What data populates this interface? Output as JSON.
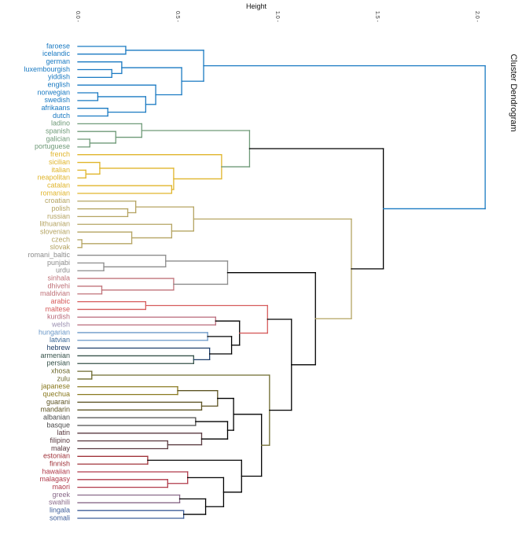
{
  "chart_data": {
    "type": "dendrogram",
    "title": "Cluster Dendrogram",
    "xlabel": "Height",
    "xlim": [
      0,
      2.05
    ],
    "x_ticks": [
      0.0,
      0.5,
      1.0,
      1.5,
      2.0
    ],
    "x_tick_labels": [
      "0.0",
      "0.5",
      "1.0",
      "1.5",
      "2.0"
    ],
    "grid": false,
    "leaves": [
      {
        "label": "faroese",
        "color": "#1a7ac2"
      },
      {
        "label": "icelandic",
        "color": "#1a7ac2"
      },
      {
        "label": "german",
        "color": "#1a7ac2"
      },
      {
        "label": "luxembourgish",
        "color": "#1a7ac2"
      },
      {
        "label": "yiddish",
        "color": "#1a7ac2"
      },
      {
        "label": "english",
        "color": "#1a7ac2"
      },
      {
        "label": "norwegian",
        "color": "#1a7ac2"
      },
      {
        "label": "swedish",
        "color": "#1a7ac2"
      },
      {
        "label": "afrikaans",
        "color": "#1a7ac2"
      },
      {
        "label": "dutch",
        "color": "#1a7ac2"
      },
      {
        "label": "ladino",
        "color": "#6f9a78"
      },
      {
        "label": "spanish",
        "color": "#6f9a78"
      },
      {
        "label": "galician",
        "color": "#6f9a78"
      },
      {
        "label": "portuguese",
        "color": "#6f9a78"
      },
      {
        "label": "french",
        "color": "#e0b52b"
      },
      {
        "label": "sicilian",
        "color": "#e0b52b"
      },
      {
        "label": "italian",
        "color": "#e0b52b"
      },
      {
        "label": "neapolitan",
        "color": "#e0b52b"
      },
      {
        "label": "catalan",
        "color": "#e0b52b"
      },
      {
        "label": "romanian",
        "color": "#e0b52b"
      },
      {
        "label": "croatian",
        "color": "#b5a462"
      },
      {
        "label": "polish",
        "color": "#b5a462"
      },
      {
        "label": "russian",
        "color": "#b5a462"
      },
      {
        "label": "lithuanian",
        "color": "#b5a462"
      },
      {
        "label": "slovenian",
        "color": "#b5a462"
      },
      {
        "label": "czech",
        "color": "#b5a462"
      },
      {
        "label": "slovak",
        "color": "#b5a462"
      },
      {
        "label": "romani_baltic",
        "color": "#8c8c8c"
      },
      {
        "label": "punjabi",
        "color": "#8c8c8c"
      },
      {
        "label": "urdu",
        "color": "#8c8c8c"
      },
      {
        "label": "sinhala",
        "color": "#c0737a"
      },
      {
        "label": "dhivehi",
        "color": "#c0737a"
      },
      {
        "label": "maldivian",
        "color": "#c0737a"
      },
      {
        "label": "arabic",
        "color": "#d65c5c"
      },
      {
        "label": "maltese",
        "color": "#d65c5c"
      },
      {
        "label": "kurdish",
        "color": "#b96a7a"
      },
      {
        "label": "welsh",
        "color": "#9a8fb0"
      },
      {
        "label": "hungarian",
        "color": "#6a98c8"
      },
      {
        "label": "latvian",
        "color": "#3d6a9a"
      },
      {
        "label": "hebrew",
        "color": "#1f3f6a"
      },
      {
        "label": "armenian",
        "color": "#36524a"
      },
      {
        "label": "persian",
        "color": "#36524a"
      },
      {
        "label": "xhosa",
        "color": "#6e6a2f"
      },
      {
        "label": "zulu",
        "color": "#6e6a2f"
      },
      {
        "label": "japanese",
        "color": "#8a7a20"
      },
      {
        "label": "quechua",
        "color": "#8a7a20"
      },
      {
        "label": "guarani",
        "color": "#5e5424"
      },
      {
        "label": "mandarin",
        "color": "#5e5424"
      },
      {
        "label": "albanian",
        "color": "#4a4a4a"
      },
      {
        "label": "basque",
        "color": "#4a4a4a"
      },
      {
        "label": "latin",
        "color": "#5a3a40"
      },
      {
        "label": "filipino",
        "color": "#5a3a40"
      },
      {
        "label": "malay",
        "color": "#5a3a40"
      },
      {
        "label": "estonian",
        "color": "#a0333a"
      },
      {
        "label": "finnish",
        "color": "#a0333a"
      },
      {
        "label": "hawaiian",
        "color": "#b03a4a"
      },
      {
        "label": "malagasy",
        "color": "#b03a4a"
      },
      {
        "label": "maori",
        "color": "#b03a4a"
      },
      {
        "label": "greek",
        "color": "#8a6a8a"
      },
      {
        "label": "swahili",
        "color": "#8a6a8a"
      },
      {
        "label": "lingala",
        "color": "#3f5f9a"
      },
      {
        "label": "somali",
        "color": "#3f5f9a"
      }
    ],
    "merges": [
      {
        "id": "luxyid",
        "children": [
          "luxembourgish",
          "yiddish"
        ],
        "height": 0.17,
        "color": "#1a7ac2"
      },
      {
        "id": "gerlux",
        "children": [
          "german",
          "luxyid"
        ],
        "height": 0.22,
        "color": "#1a7ac2"
      },
      {
        "id": "faric",
        "children": [
          "faroese",
          "icelandic"
        ],
        "height": 0.24,
        "color": "#1a7ac2"
      },
      {
        "id": "norswe",
        "children": [
          "norwegian",
          "swedish"
        ],
        "height": 0.1,
        "color": "#1a7ac2"
      },
      {
        "id": "afrdut",
        "children": [
          "afrikaans",
          "dutch"
        ],
        "height": 0.15,
        "color": "#1a7ac2"
      },
      {
        "id": "nsad",
        "children": [
          "norswe",
          "afrdut"
        ],
        "height": 0.34,
        "color": "#1a7ac2"
      },
      {
        "id": "engnsad",
        "children": [
          "english",
          "nsad"
        ],
        "height": 0.39,
        "color": "#1a7ac2"
      },
      {
        "id": "gereng",
        "children": [
          "gerlux",
          "engnsad"
        ],
        "height": 0.52,
        "color": "#1a7ac2"
      },
      {
        "id": "germanic",
        "children": [
          "faric",
          "gereng"
        ],
        "height": 0.63,
        "color": "#1a7ac2"
      },
      {
        "id": "galpor",
        "children": [
          "galician",
          "portuguese"
        ],
        "height": 0.06,
        "color": "#6f9a78"
      },
      {
        "id": "spagp",
        "children": [
          "spanish",
          "galpor"
        ],
        "height": 0.19,
        "color": "#6f9a78"
      },
      {
        "id": "iberian",
        "children": [
          "ladino",
          "spagp"
        ],
        "height": 0.32,
        "color": "#6f9a78"
      },
      {
        "id": "itanea",
        "children": [
          "italian",
          "neapolitan"
        ],
        "height": 0.04,
        "color": "#e0b52b"
      },
      {
        "id": "sicin",
        "children": [
          "sicilian",
          "itanea"
        ],
        "height": 0.11,
        "color": "#e0b52b"
      },
      {
        "id": "catrom",
        "children": [
          "catalan",
          "romanian"
        ],
        "height": 0.47,
        "color": "#e0b52b"
      },
      {
        "id": "sicrest",
        "children": [
          "sicin",
          "catrom"
        ],
        "height": 0.48,
        "color": "#e0b52b"
      },
      {
        "id": "gallo",
        "children": [
          "french",
          "sicrest"
        ],
        "height": 0.72,
        "color": "#e0b52b"
      },
      {
        "id": "romance",
        "children": [
          "iberian",
          "gallo"
        ],
        "height": 0.86,
        "color": "#6f9a78"
      },
      {
        "id": "polrus",
        "children": [
          "polish",
          "russian"
        ],
        "height": 0.25,
        "color": "#b5a462"
      },
      {
        "id": "crpr",
        "children": [
          "croatian",
          "polrus"
        ],
        "height": 0.29,
        "color": "#b5a462"
      },
      {
        "id": "czesk",
        "children": [
          "czech",
          "slovak"
        ],
        "height": 0.02,
        "color": "#b5a462"
      },
      {
        "id": "slocz",
        "children": [
          "slovenian",
          "czesk"
        ],
        "height": 0.27,
        "color": "#b5a462"
      },
      {
        "id": "litsc",
        "children": [
          "lithuanian",
          "slocz"
        ],
        "height": 0.47,
        "color": "#b5a462"
      },
      {
        "id": "balto",
        "children": [
          "crpr",
          "litsc"
        ],
        "height": 0.58,
        "color": "#b5a462"
      },
      {
        "id": "punurd",
        "children": [
          "punjabi",
          "urdu"
        ],
        "height": 0.13,
        "color": "#8c8c8c"
      },
      {
        "id": "indic",
        "children": [
          "romani_baltic",
          "punurd"
        ],
        "height": 0.44,
        "color": "#8c8c8c"
      },
      {
        "id": "dhimal",
        "children": [
          "dhivehi",
          "maldivian"
        ],
        "height": 0.12,
        "color": "#c0737a"
      },
      {
        "id": "sinh",
        "children": [
          "sinhala",
          "dhimal"
        ],
        "height": 0.48,
        "color": "#c0737a"
      },
      {
        "id": "indo",
        "children": [
          "indic",
          "sinh"
        ],
        "height": 0.75,
        "color": "#8c8c8c"
      },
      {
        "id": "semit",
        "children": [
          "arabic",
          "maltese"
        ],
        "height": 0.34,
        "color": "#d65c5c"
      },
      {
        "id": "kurwel",
        "children": [
          "kurdish",
          "welsh"
        ],
        "height": 0.69,
        "color": "#b96a7a"
      },
      {
        "id": "hunlat",
        "children": [
          "hungarian",
          "latvian"
        ],
        "height": 0.65,
        "color": "#6a98c8"
      },
      {
        "id": "armper",
        "children": [
          "armenian",
          "persian"
        ],
        "height": 0.58,
        "color": "#36524a"
      },
      {
        "id": "hebap",
        "children": [
          "hebrew",
          "armper"
        ],
        "height": 0.66,
        "color": "#1f3f6a"
      },
      {
        "id": "hlha",
        "children": [
          "hunlat",
          "hebap"
        ],
        "height": 0.77,
        "color": "#000000"
      },
      {
        "id": "kwhh",
        "children": [
          "kurwel",
          "hlha"
        ],
        "height": 0.81,
        "color": "#000000"
      },
      {
        "id": "semkw",
        "children": [
          "semit",
          "kwhh"
        ],
        "height": 0.95,
        "color": "#d65c5c"
      },
      {
        "id": "xhozul",
        "children": [
          "xhosa",
          "zulu"
        ],
        "height": 0.07,
        "color": "#6e6a2f"
      },
      {
        "id": "japque",
        "children": [
          "japanese",
          "quechua"
        ],
        "height": 0.5,
        "color": "#8a7a20"
      },
      {
        "id": "guaman",
        "children": [
          "guarani",
          "mandarin"
        ],
        "height": 0.62,
        "color": "#5e5424"
      },
      {
        "id": "jqgm",
        "children": [
          "japque",
          "guaman"
        ],
        "height": 0.7,
        "color": "#5e5424"
      },
      {
        "id": "albbas",
        "children": [
          "albanian",
          "basque"
        ],
        "height": 0.59,
        "color": "#4a4a4a"
      },
      {
        "id": "filmal",
        "children": [
          "filipino",
          "malay"
        ],
        "height": 0.45,
        "color": "#5a3a40"
      },
      {
        "id": "latfm",
        "children": [
          "latin",
          "filmal"
        ],
        "height": 0.62,
        "color": "#5a3a40"
      },
      {
        "id": "ablfm",
        "children": [
          "albbas",
          "latfm"
        ],
        "height": 0.75,
        "color": "#000000"
      },
      {
        "id": "jgab",
        "children": [
          "jqgm",
          "ablfm"
        ],
        "height": 0.78,
        "color": "#000000"
      },
      {
        "id": "estfin",
        "children": [
          "estonian",
          "finnish"
        ],
        "height": 0.35,
        "color": "#a0333a"
      },
      {
        "id": "malmao",
        "children": [
          "malagasy",
          "maori"
        ],
        "height": 0.45,
        "color": "#b03a4a"
      },
      {
        "id": "hawmm",
        "children": [
          "hawaiian",
          "malmao"
        ],
        "height": 0.55,
        "color": "#b03a4a"
      },
      {
        "id": "grsw",
        "children": [
          "greek",
          "swahili"
        ],
        "height": 0.51,
        "color": "#8a6a8a"
      },
      {
        "id": "linsom",
        "children": [
          "lingala",
          "somali"
        ],
        "height": 0.53,
        "color": "#3f5f9a"
      },
      {
        "id": "gsls",
        "children": [
          "grsw",
          "linsom"
        ],
        "height": 0.64,
        "color": "#000000"
      },
      {
        "id": "hmgs",
        "children": [
          "hawmm",
          "gsls"
        ],
        "height": 0.73,
        "color": "#000000"
      },
      {
        "id": "efhm",
        "children": [
          "estfin",
          "hmgs"
        ],
        "height": 0.82,
        "color": "#000000"
      },
      {
        "id": "jgef",
        "children": [
          "jgab",
          "efhm"
        ],
        "height": 0.92,
        "color": "#000000"
      },
      {
        "id": "xzjg",
        "children": [
          "xhozul",
          "jgef"
        ],
        "height": 0.96,
        "color": "#6e6a2f"
      },
      {
        "id": "semxz",
        "children": [
          "semkw",
          "xzjg"
        ],
        "height": 1.07,
        "color": "#000000"
      },
      {
        "id": "indsem",
        "children": [
          "indo",
          "semxz"
        ],
        "height": 1.19,
        "color": "#000000"
      },
      {
        "id": "balind",
        "children": [
          "balto",
          "indsem"
        ],
        "height": 1.37,
        "color": "#b5a462"
      },
      {
        "id": "romrest",
        "children": [
          "romance",
          "balind"
        ],
        "height": 1.53,
        "color": "#000000"
      },
      {
        "id": "root",
        "children": [
          "germanic",
          "romrest"
        ],
        "height": 2.04,
        "color": "#1a7ac2"
      }
    ]
  }
}
